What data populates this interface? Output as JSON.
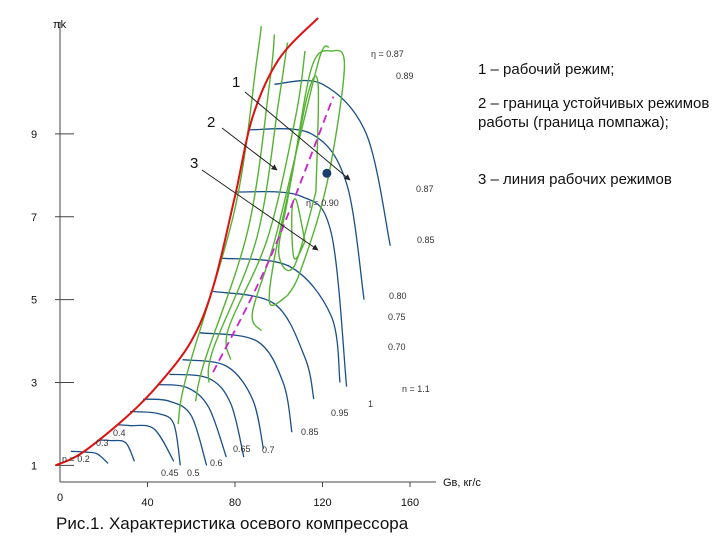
{
  "chart_data": {
    "type": "line",
    "ylabel": "πk",
    "xlabel": "Gв, кг/с",
    "x_ticks": [
      {
        "x": 40,
        "label": "40"
      },
      {
        "x": 80,
        "label": "80"
      },
      {
        "x": 120,
        "label": "120"
      },
      {
        "x": 160,
        "label": "160"
      }
    ],
    "origin_label": "0",
    "y_ticks": [
      {
        "y": 1,
        "label": "1"
      },
      {
        "y": 3,
        "label": "3"
      },
      {
        "y": 5,
        "label": "5"
      },
      {
        "y": 7,
        "label": "7"
      },
      {
        "y": 9,
        "label": "9"
      }
    ],
    "xlim": [
      0,
      160
    ],
    "ylim": [
      0.6,
      11.7
    ],
    "surge_line": {
      "label": "2",
      "color": "#dd1111",
      "points": [
        [
          -2,
          1.0
        ],
        [
          10,
          1.3
        ],
        [
          30,
          2.15
        ],
        [
          45,
          2.95
        ],
        [
          60,
          4.0
        ],
        [
          70,
          5.3
        ],
        [
          80,
          7.5
        ],
        [
          88,
          9.4
        ],
        [
          100,
          10.8
        ],
        [
          118,
          11.8
        ]
      ]
    },
    "operating_line": {
      "label": "3",
      "color": "#cc22cc",
      "points": [
        [
          70,
          3.25
        ],
        [
          96,
          6.0
        ],
        [
          125,
          9.9
        ]
      ]
    },
    "operating_point": {
      "x": 122,
      "y": 8.05
    },
    "speed_lines": [
      {
        "label": "n = 0.2",
        "points": [
          [
            5,
            1.34
          ],
          [
            12,
            1.32
          ],
          [
            17,
            1.28
          ],
          [
            22,
            1.05
          ]
        ]
      },
      {
        "label": "0.3",
        "points": [
          [
            18,
            1.61
          ],
          [
            23,
            1.6
          ],
          [
            30,
            1.55
          ],
          [
            34,
            1.1
          ]
        ]
      },
      {
        "label": "0.4",
        "points": [
          [
            26,
            1.98
          ],
          [
            32,
            1.96
          ],
          [
            43,
            1.88
          ],
          [
            52,
            1.1
          ]
        ]
      },
      {
        "label": "0.45",
        "points": [
          [
            32,
            2.3
          ],
          [
            45,
            2.25
          ],
          [
            52,
            2.0
          ],
          [
            55,
            1.0
          ]
        ]
      },
      {
        "label": "0.5",
        "points": [
          [
            38,
            2.6
          ],
          [
            50,
            2.55
          ],
          [
            60,
            2.2
          ],
          [
            67,
            1.0
          ]
        ]
      },
      {
        "label": "0.6",
        "points": [
          [
            45,
            2.95
          ],
          [
            58,
            2.88
          ],
          [
            68,
            2.4
          ],
          [
            76,
            1.2
          ]
        ]
      },
      {
        "label": "0.65",
        "points": [
          [
            50,
            3.2
          ],
          [
            68,
            3.1
          ],
          [
            78,
            2.5
          ],
          [
            84,
            1.2
          ]
        ]
      },
      {
        "label": "0.7",
        "points": [
          [
            56,
            3.55
          ],
          [
            76,
            3.4
          ],
          [
            88,
            2.6
          ],
          [
            93,
            1.4
          ]
        ]
      },
      {
        "label": "0.85",
        "points": [
          [
            64,
            4.2
          ],
          [
            90,
            4.0
          ],
          [
            102,
            3.0
          ],
          [
            106,
            1.8
          ]
        ]
      },
      {
        "label": "0.95",
        "points": [
          [
            70,
            5.2
          ],
          [
            98,
            4.9
          ],
          [
            112,
            3.6
          ],
          [
            116,
            2.6
          ]
        ]
      },
      {
        "label": "n = 1.1",
        "points": [
          [
            74,
            6.0
          ],
          [
            105,
            5.8
          ],
          [
            124,
            4.6
          ],
          [
            128,
            3.0
          ]
        ]
      },
      {
        "label": "",
        "points": [
          [
            80,
            7.6
          ],
          [
            110,
            7.5
          ],
          [
            124,
            6.6
          ],
          [
            131,
            2.9
          ]
        ]
      },
      {
        "label": "",
        "points": [
          [
            86,
            9.1
          ],
          [
            115,
            9.0
          ],
          [
            131,
            7.8
          ],
          [
            139,
            5.0
          ]
        ]
      },
      {
        "label": "",
        "points": [
          [
            98,
            10.2
          ],
          [
            120,
            10.2
          ],
          [
            140,
            9.0
          ],
          [
            151,
            6.3
          ]
        ]
      }
    ],
    "efficiency_contours": [
      {
        "label": "η = 0.90",
        "points": [
          [
            112,
            6.4
          ],
          [
            107,
            6.0
          ],
          [
            106,
            7.1
          ],
          [
            108,
            7.4
          ],
          [
            112,
            6.4
          ]
        ]
      },
      {
        "label": "0.89",
        "points": [
          [
            117,
            7.6
          ],
          [
            107,
            5.8
          ],
          [
            100,
            6.1
          ],
          [
            104,
            7.4
          ],
          [
            113,
            9.9
          ],
          [
            118,
            10.2
          ],
          [
            117,
            7.6
          ]
        ]
      },
      {
        "label": "0.87",
        "points": [
          [
            104,
            5.1
          ],
          [
            96,
            4.9
          ],
          [
            98,
            6.0
          ],
          [
            106,
            8.0
          ],
          [
            115,
            10.6
          ],
          [
            124,
            11.0
          ],
          [
            130,
            10.6
          ],
          [
            122,
            7.8
          ],
          [
            110,
            5.7
          ],
          [
            104,
            5.1
          ]
        ]
      },
      {
        "label": "0.85",
        "points": [
          [
            92,
            4.25
          ],
          [
            88,
            4.7
          ],
          [
            98,
            6.4
          ],
          [
            110,
            9.0
          ],
          [
            119,
            10.9
          ],
          [
            123,
            11.1
          ]
        ]
      },
      {
        "label": "0.80",
        "points": [
          [
            78,
            3.55
          ],
          [
            77,
            4.3
          ],
          [
            95,
            6.5
          ],
          [
            108,
            9.5
          ],
          [
            112,
            11.0
          ]
        ]
      },
      {
        "label": "0.75",
        "points": [
          [
            68,
            3.0
          ],
          [
            70,
            3.8
          ],
          [
            90,
            6.5
          ],
          [
            100,
            9.8
          ],
          [
            104,
            11.2
          ]
        ]
      },
      {
        "label": "0.70",
        "points": [
          [
            62,
            2.55
          ],
          [
            66,
            3.5
          ],
          [
            86,
            6.7
          ],
          [
            96,
            10.3
          ],
          [
            98,
            11.4
          ]
        ]
      },
      {
        "label": "η = 0.87",
        "points": [
          [
            54,
            2.0
          ],
          [
            58,
            3.2
          ],
          [
            80,
            7.2
          ],
          [
            90,
            10.8
          ],
          [
            92,
            11.6
          ]
        ]
      }
    ],
    "annotations": [
      "0.4",
      "0.3",
      "n = 0.2",
      "0.65",
      "0.7",
      "0.45",
      "0.5",
      "0.6",
      "0.95",
      "1"
    ]
  },
  "callouts": {
    "label_1": "1",
    "label_2": "2",
    "label_3": "3"
  },
  "legend": {
    "item_1": "1 – рабочий режим;",
    "item_2": "2 – граница устойчивых режимов работы (граница помпажа);",
    "item_3": "3 – линия рабочих режимов"
  },
  "caption": "Рис.1. Характеристика осевого компрессора"
}
